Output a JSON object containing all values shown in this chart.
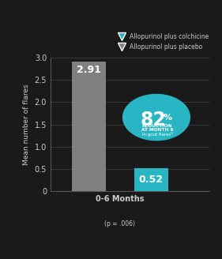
{
  "placebo_value": 2.91,
  "colchicine_value": 0.52,
  "placebo_color": "#808080",
  "colchicine_color": "#29b5c3",
  "ylim": [
    0,
    3.0
  ],
  "yticks": [
    0,
    0.5,
    1.0,
    1.5,
    2.0,
    2.5,
    3.0
  ],
  "xlabel": "0-6 Months",
  "xlabel_sub": "(p = .006)",
  "ylabel": "Mean number of flares",
  "legend_label1": "Allopurinol plus colchicine",
  "legend_label2": "Allopurinol plus placebo",
  "reduction_pct": "82",
  "reduction_text1": "REDUCTION",
  "reduction_text2": "AT MONTH 6",
  "reduction_text3": "in gout flares³",
  "background_color": "#1a1a1a",
  "text_color": "#ffffff",
  "axis_text_color": "#cccccc",
  "drop_color": "#29b5c3"
}
